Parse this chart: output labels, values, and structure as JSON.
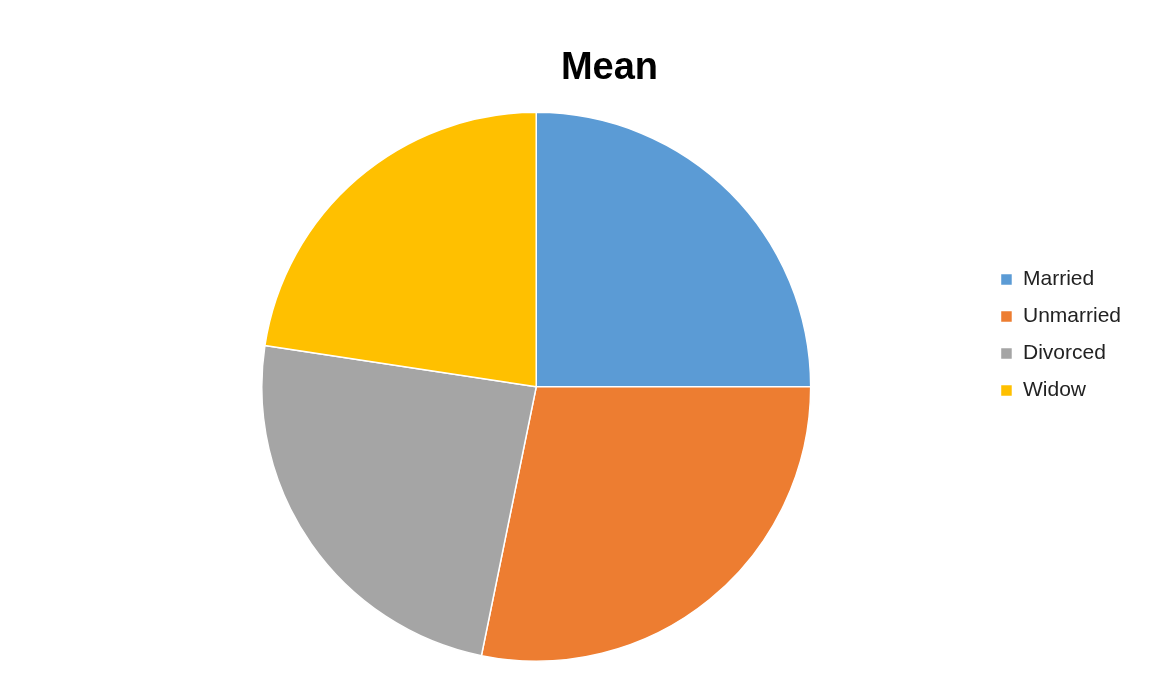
{
  "chart_data": {
    "type": "pie",
    "title": "Mean",
    "categories": [
      "Married",
      "Unmarried",
      "Divorced",
      "Widow"
    ],
    "values": [
      25,
      28.2,
      24.2,
      22.6
    ],
    "colors": [
      "#5b9bd5",
      "#ed7d31",
      "#a5a5a5",
      "#ffc000"
    ],
    "legend": "right"
  }
}
